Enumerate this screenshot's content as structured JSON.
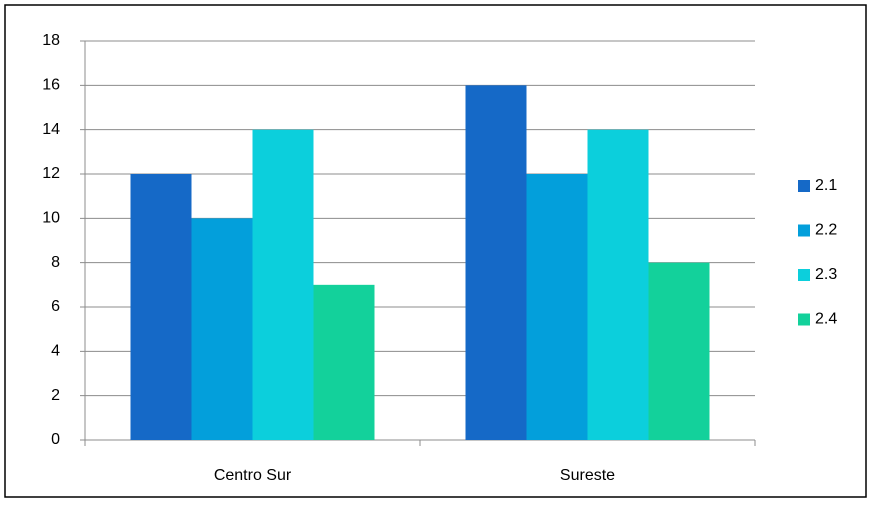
{
  "chart_data": {
    "type": "bar",
    "categories": [
      "Centro Sur",
      "Sureste"
    ],
    "series": [
      {
        "name": "2.1",
        "color": "#1569c7",
        "values": [
          12,
          16
        ]
      },
      {
        "name": "2.2",
        "color": "#039fdb",
        "values": [
          10,
          12
        ]
      },
      {
        "name": "2.3",
        "color": "#0ccfdc",
        "values": [
          14,
          14
        ]
      },
      {
        "name": "2.4",
        "color": "#13d19b",
        "values": [
          7,
          8
        ]
      }
    ],
    "ylim": [
      0,
      18
    ],
    "yticks": [
      0,
      2,
      4,
      6,
      8,
      10,
      12,
      14,
      16,
      18
    ],
    "grid": true,
    "legend": "right"
  }
}
